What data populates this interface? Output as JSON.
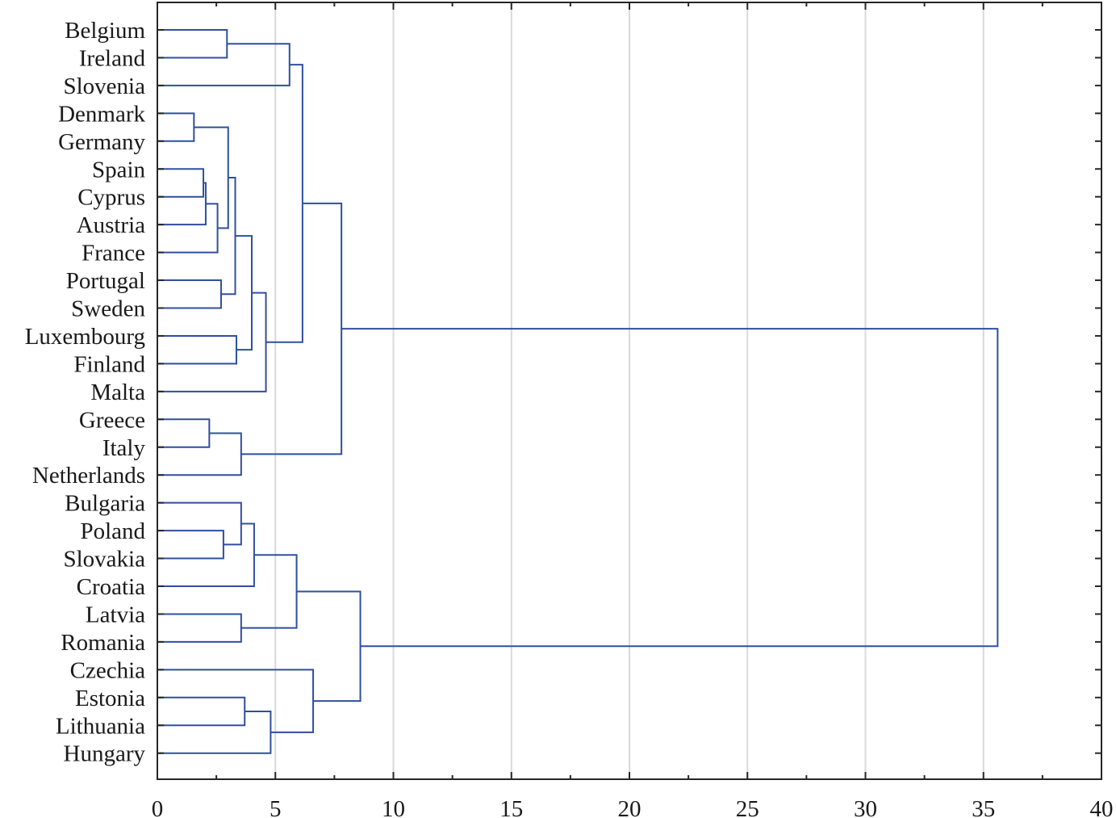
{
  "chart_data": {
    "type": "dendrogram",
    "orientation": "horizontal",
    "title": "",
    "xlabel": "",
    "ylabel": "",
    "xlim": [
      0,
      40
    ],
    "xticks": [
      "0",
      "5",
      "10",
      "15",
      "20",
      "25",
      "30",
      "35",
      "40"
    ],
    "tick_values": [
      0,
      5,
      10,
      15,
      20,
      25,
      30,
      35,
      40
    ],
    "vertical_grid": true,
    "line_color": "#2f4f9f",
    "leaves": [
      "Belgium",
      "Ireland",
      "Slovenia",
      "Denmark",
      "Germany",
      "Spain",
      "Cyprus",
      "Austria",
      "France",
      "Portugal",
      "Sweden",
      "Luxembourg",
      "Finland",
      "Malta",
      "Greece",
      "Italy",
      "Netherlands",
      "Bulgaria",
      "Poland",
      "Slovakia",
      "Croatia",
      "Latvia",
      "Romania",
      "Czechia",
      "Estonia",
      "Lithuania",
      "Hungary"
    ],
    "merges": [
      {
        "id": "n0",
        "left": "Spain",
        "right": "Cyprus",
        "height": 1.95
      },
      {
        "id": "n1",
        "left": "n0",
        "right": "Austria",
        "height": 2.05
      },
      {
        "id": "n2",
        "left": "n1",
        "right": "France",
        "height": 2.55
      },
      {
        "id": "n3",
        "left": "Denmark",
        "right": "Germany",
        "height": 1.55
      },
      {
        "id": "n4",
        "left": "n3",
        "right": "n2",
        "height": 3.0
      },
      {
        "id": "n5",
        "left": "Portugal",
        "right": "Sweden",
        "height": 2.7
      },
      {
        "id": "n6",
        "left": "n4",
        "right": "n5",
        "height": 3.3
      },
      {
        "id": "n7",
        "left": "Luxembourg",
        "right": "Finland",
        "height": 3.35
      },
      {
        "id": "n8",
        "left": "n6",
        "right": "n7",
        "height": 4.0
      },
      {
        "id": "n9",
        "left": "n8",
        "right": "Malta",
        "height": 4.6
      },
      {
        "id": "n10",
        "left": "Belgium",
        "right": "Ireland",
        "height": 2.95
      },
      {
        "id": "n11",
        "left": "n10",
        "right": "Slovenia",
        "height": 5.6
      },
      {
        "id": "n12",
        "left": "n11",
        "right": "n9",
        "height": 6.15
      },
      {
        "id": "n13",
        "left": "Greece",
        "right": "Italy",
        "height": 2.2
      },
      {
        "id": "n14",
        "left": "n13",
        "right": "Netherlands",
        "height": 3.55
      },
      {
        "id": "n15",
        "left": "n12",
        "right": "n14",
        "height": 7.8
      },
      {
        "id": "n16",
        "left": "Poland",
        "right": "Slovakia",
        "height": 2.8
      },
      {
        "id": "n17",
        "left": "Bulgaria",
        "right": "n16",
        "height": 3.55
      },
      {
        "id": "n18",
        "left": "n17",
        "right": "Croatia",
        "height": 4.1
      },
      {
        "id": "n19",
        "left": "Latvia",
        "right": "Romania",
        "height": 3.55
      },
      {
        "id": "n20",
        "left": "n18",
        "right": "n19",
        "height": 5.9
      },
      {
        "id": "n21",
        "left": "Estonia",
        "right": "Lithuania",
        "height": 3.7
      },
      {
        "id": "n22",
        "left": "n21",
        "right": "Hungary",
        "height": 4.8
      },
      {
        "id": "n23",
        "left": "Czechia",
        "right": "n22",
        "height": 6.6
      },
      {
        "id": "n24",
        "left": "n20",
        "right": "n23",
        "height": 8.6
      },
      {
        "id": "n25",
        "left": "n15",
        "right": "n24",
        "height": 35.6
      }
    ]
  }
}
